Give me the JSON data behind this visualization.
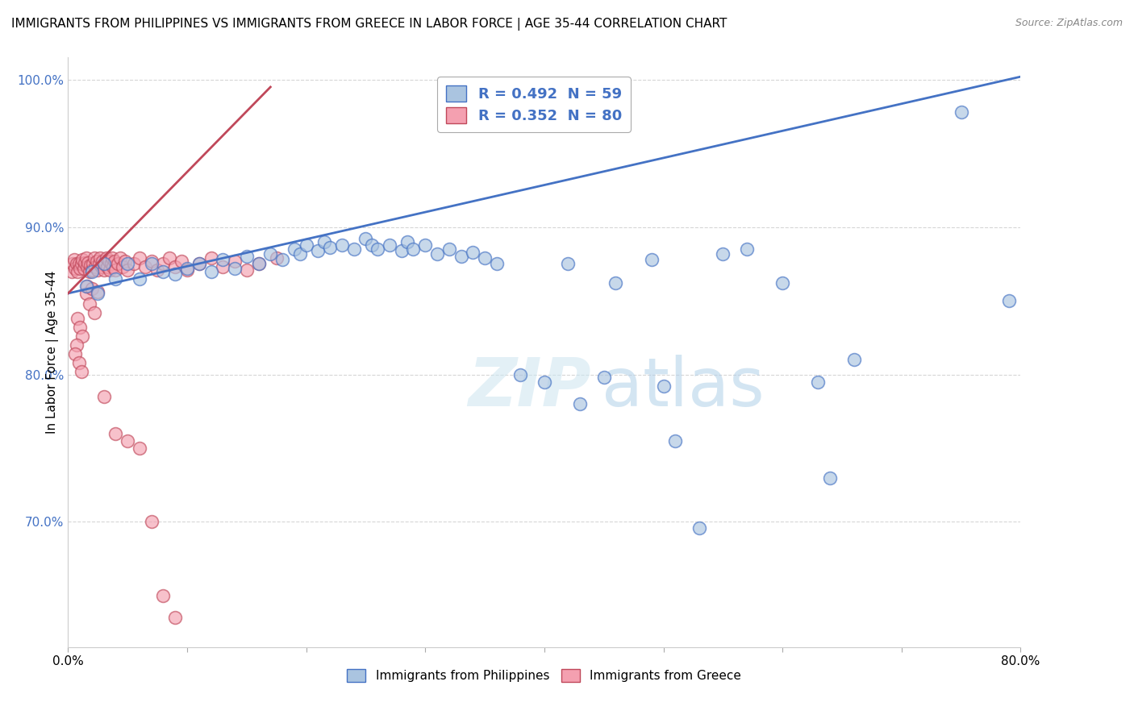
{
  "title": "IMMIGRANTS FROM PHILIPPINES VS IMMIGRANTS FROM GREECE IN LABOR FORCE | AGE 35-44 CORRELATION CHART",
  "source": "Source: ZipAtlas.com",
  "ylabel": "In Labor Force | Age 35-44",
  "legend_label_blue": "Immigrants from Philippines",
  "legend_label_pink": "Immigrants from Greece",
  "R_blue": 0.492,
  "N_blue": 59,
  "R_pink": 0.352,
  "N_pink": 80,
  "color_blue": "#aac4e0",
  "color_pink": "#f4a0b0",
  "line_color_blue": "#4472c4",
  "line_color_pink": "#c0485a",
  "xlim": [
    0.0,
    0.8
  ],
  "ylim": [
    0.615,
    1.015
  ],
  "xticks": [
    0.0,
    0.1,
    0.2,
    0.3,
    0.4,
    0.5,
    0.6,
    0.7,
    0.8
  ],
  "yticks": [
    0.7,
    0.8,
    0.9,
    1.0
  ],
  "ytick_labels": [
    "70.0%",
    "80.0%",
    "90.0%",
    "100.0%"
  ],
  "blue_scatter_x": [
    0.015,
    0.02,
    0.025,
    0.03,
    0.04,
    0.05,
    0.06,
    0.07,
    0.08,
    0.09,
    0.1,
    0.11,
    0.12,
    0.13,
    0.14,
    0.15,
    0.16,
    0.17,
    0.18,
    0.19,
    0.195,
    0.2,
    0.21,
    0.215,
    0.22,
    0.23,
    0.24,
    0.25,
    0.255,
    0.26,
    0.27,
    0.28,
    0.285,
    0.29,
    0.3,
    0.31,
    0.32,
    0.33,
    0.34,
    0.35,
    0.36,
    0.38,
    0.4,
    0.42,
    0.43,
    0.45,
    0.46,
    0.49,
    0.5,
    0.51,
    0.53,
    0.55,
    0.57,
    0.6,
    0.63,
    0.64,
    0.66,
    0.75,
    0.79
  ],
  "blue_scatter_y": [
    0.86,
    0.87,
    0.855,
    0.875,
    0.865,
    0.875,
    0.865,
    0.875,
    0.87,
    0.868,
    0.872,
    0.875,
    0.87,
    0.878,
    0.872,
    0.88,
    0.875,
    0.882,
    0.878,
    0.885,
    0.882,
    0.888,
    0.884,
    0.89,
    0.886,
    0.888,
    0.885,
    0.892,
    0.888,
    0.885,
    0.888,
    0.884,
    0.89,
    0.885,
    0.888,
    0.882,
    0.885,
    0.88,
    0.883,
    0.879,
    0.875,
    0.8,
    0.795,
    0.875,
    0.78,
    0.798,
    0.862,
    0.878,
    0.792,
    0.755,
    0.696,
    0.882,
    0.885,
    0.862,
    0.795,
    0.73,
    0.81,
    0.978,
    0.85
  ],
  "pink_scatter_x": [
    0.003,
    0.004,
    0.005,
    0.006,
    0.007,
    0.008,
    0.009,
    0.01,
    0.011,
    0.012,
    0.013,
    0.014,
    0.015,
    0.016,
    0.017,
    0.018,
    0.019,
    0.02,
    0.021,
    0.022,
    0.023,
    0.024,
    0.025,
    0.026,
    0.027,
    0.028,
    0.029,
    0.03,
    0.031,
    0.032,
    0.033,
    0.034,
    0.035,
    0.036,
    0.037,
    0.038,
    0.039,
    0.04,
    0.042,
    0.044,
    0.046,
    0.048,
    0.05,
    0.055,
    0.06,
    0.065,
    0.07,
    0.075,
    0.08,
    0.085,
    0.09,
    0.095,
    0.1,
    0.11,
    0.12,
    0.13,
    0.14,
    0.15,
    0.16,
    0.175,
    0.015,
    0.018,
    0.022,
    0.008,
    0.01,
    0.012,
    0.007,
    0.006,
    0.009,
    0.011,
    0.016,
    0.02,
    0.025,
    0.03,
    0.04,
    0.05,
    0.06,
    0.07,
    0.08,
    0.09
  ],
  "pink_scatter_y": [
    0.87,
    0.875,
    0.878,
    0.872,
    0.875,
    0.87,
    0.875,
    0.872,
    0.875,
    0.878,
    0.872,
    0.876,
    0.879,
    0.873,
    0.876,
    0.87,
    0.874,
    0.871,
    0.875,
    0.879,
    0.873,
    0.877,
    0.871,
    0.875,
    0.879,
    0.873,
    0.877,
    0.871,
    0.875,
    0.879,
    0.873,
    0.877,
    0.871,
    0.875,
    0.879,
    0.873,
    0.877,
    0.871,
    0.875,
    0.879,
    0.873,
    0.877,
    0.871,
    0.875,
    0.879,
    0.873,
    0.877,
    0.871,
    0.875,
    0.879,
    0.873,
    0.877,
    0.871,
    0.875,
    0.879,
    0.873,
    0.877,
    0.871,
    0.875,
    0.879,
    0.855,
    0.848,
    0.842,
    0.838,
    0.832,
    0.826,
    0.82,
    0.814,
    0.808,
    0.802,
    0.86,
    0.858,
    0.856,
    0.785,
    0.76,
    0.755,
    0.75,
    0.7,
    0.65,
    0.635
  ],
  "blue_line_x": [
    0.0,
    0.8
  ],
  "blue_line_y": [
    0.855,
    1.002
  ],
  "pink_line_x": [
    0.0,
    0.17
  ],
  "pink_line_y": [
    0.855,
    0.995
  ],
  "watermark_text": "ZIP",
  "watermark_text2": "atlas",
  "background_color": "#ffffff",
  "grid_color": "#cccccc",
  "grid_alpha": 0.8
}
